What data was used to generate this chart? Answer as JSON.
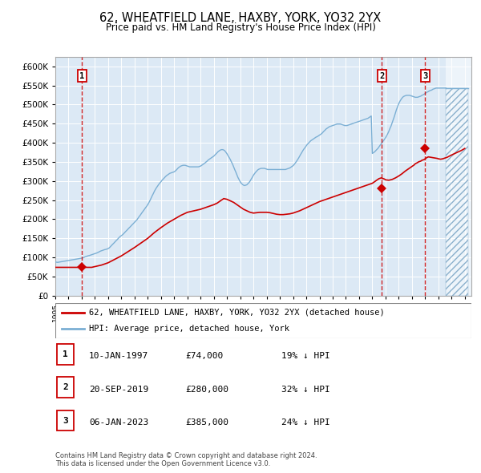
{
  "title": "62, WHEATFIELD LANE, HAXBY, YORK, YO32 2YX",
  "subtitle": "Price paid vs. HM Land Registry's House Price Index (HPI)",
  "background_color": "#dce9f5",
  "plot_bg_color": "#dce9f5",
  "fig_bg_color": "#ffffff",
  "hpi_color": "#7bafd4",
  "price_color": "#cc0000",
  "ylim": [
    0,
    625000
  ],
  "yticks": [
    0,
    50000,
    100000,
    150000,
    200000,
    250000,
    300000,
    350000,
    400000,
    450000,
    500000,
    550000,
    600000
  ],
  "xlim_start": 1995.0,
  "xlim_end": 2026.5,
  "sale_dates": [
    1997.03,
    2019.72,
    2023.01
  ],
  "sale_prices": [
    74000,
    280000,
    385000
  ],
  "sale_labels": [
    "1",
    "2",
    "3"
  ],
  "sale_info": [
    {
      "label": "1",
      "date": "10-JAN-1997",
      "price": "£74,000",
      "pct": "19% ↓ HPI"
    },
    {
      "label": "2",
      "date": "20-SEP-2019",
      "price": "£280,000",
      "pct": "32% ↓ HPI"
    },
    {
      "label": "3",
      "date": "06-JAN-2023",
      "price": "£385,000",
      "pct": "24% ↓ HPI"
    }
  ],
  "legend_line1": "62, WHEATFIELD LANE, HAXBY, YORK, YO32 2YX (detached house)",
  "legend_line2": "HPI: Average price, detached house, York",
  "footnote": "Contains HM Land Registry data © Crown copyright and database right 2024.\nThis data is licensed under the Open Government Licence v3.0.",
  "future_start": 2024.58,
  "hpi_data": {
    "years": [
      1995.0,
      1995.08,
      1995.17,
      1995.25,
      1995.33,
      1995.42,
      1995.5,
      1995.58,
      1995.67,
      1995.75,
      1995.83,
      1995.92,
      1996.0,
      1996.08,
      1996.17,
      1996.25,
      1996.33,
      1996.42,
      1996.5,
      1996.58,
      1996.67,
      1996.75,
      1996.83,
      1996.92,
      1997.0,
      1997.08,
      1997.17,
      1997.25,
      1997.33,
      1997.42,
      1997.5,
      1997.58,
      1997.67,
      1997.75,
      1997.83,
      1997.92,
      1998.0,
      1998.08,
      1998.17,
      1998.25,
      1998.33,
      1998.42,
      1998.5,
      1998.58,
      1998.67,
      1998.75,
      1998.83,
      1998.92,
      1999.0,
      1999.08,
      1999.17,
      1999.25,
      1999.33,
      1999.42,
      1999.5,
      1999.58,
      1999.67,
      1999.75,
      1999.83,
      1999.92,
      2000.0,
      2000.08,
      2000.17,
      2000.25,
      2000.33,
      2000.42,
      2000.5,
      2000.58,
      2000.67,
      2000.75,
      2000.83,
      2000.92,
      2001.0,
      2001.08,
      2001.17,
      2001.25,
      2001.33,
      2001.42,
      2001.5,
      2001.58,
      2001.67,
      2001.75,
      2001.83,
      2001.92,
      2002.0,
      2002.08,
      2002.17,
      2002.25,
      2002.33,
      2002.42,
      2002.5,
      2002.58,
      2002.67,
      2002.75,
      2002.83,
      2002.92,
      2003.0,
      2003.08,
      2003.17,
      2003.25,
      2003.33,
      2003.42,
      2003.5,
      2003.58,
      2003.67,
      2003.75,
      2003.83,
      2003.92,
      2004.0,
      2004.08,
      2004.17,
      2004.25,
      2004.33,
      2004.42,
      2004.5,
      2004.58,
      2004.67,
      2004.75,
      2004.83,
      2004.92,
      2005.0,
      2005.08,
      2005.17,
      2005.25,
      2005.33,
      2005.42,
      2005.5,
      2005.58,
      2005.67,
      2005.75,
      2005.83,
      2005.92,
      2006.0,
      2006.08,
      2006.17,
      2006.25,
      2006.33,
      2006.42,
      2006.5,
      2006.58,
      2006.67,
      2006.75,
      2006.83,
      2006.92,
      2007.0,
      2007.08,
      2007.17,
      2007.25,
      2007.33,
      2007.42,
      2007.5,
      2007.58,
      2007.67,
      2007.75,
      2007.83,
      2007.92,
      2008.0,
      2008.08,
      2008.17,
      2008.25,
      2008.33,
      2008.42,
      2008.5,
      2008.58,
      2008.67,
      2008.75,
      2008.83,
      2008.92,
      2009.0,
      2009.08,
      2009.17,
      2009.25,
      2009.33,
      2009.42,
      2009.5,
      2009.58,
      2009.67,
      2009.75,
      2009.83,
      2009.92,
      2010.0,
      2010.08,
      2010.17,
      2010.25,
      2010.33,
      2010.42,
      2010.5,
      2010.58,
      2010.67,
      2010.75,
      2010.83,
      2010.92,
      2011.0,
      2011.08,
      2011.17,
      2011.25,
      2011.33,
      2011.42,
      2011.5,
      2011.58,
      2011.67,
      2011.75,
      2011.83,
      2011.92,
      2012.0,
      2012.08,
      2012.17,
      2012.25,
      2012.33,
      2012.42,
      2012.5,
      2012.58,
      2012.67,
      2012.75,
      2012.83,
      2012.92,
      2013.0,
      2013.08,
      2013.17,
      2013.25,
      2013.33,
      2013.42,
      2013.5,
      2013.58,
      2013.67,
      2013.75,
      2013.83,
      2013.92,
      2014.0,
      2014.08,
      2014.17,
      2014.25,
      2014.33,
      2014.42,
      2014.5,
      2014.58,
      2014.67,
      2014.75,
      2014.83,
      2014.92,
      2015.0,
      2015.08,
      2015.17,
      2015.25,
      2015.33,
      2015.42,
      2015.5,
      2015.58,
      2015.67,
      2015.75,
      2015.83,
      2015.92,
      2016.0,
      2016.08,
      2016.17,
      2016.25,
      2016.33,
      2016.42,
      2016.5,
      2016.58,
      2016.67,
      2016.75,
      2016.83,
      2016.92,
      2017.0,
      2017.08,
      2017.17,
      2017.25,
      2017.33,
      2017.42,
      2017.5,
      2017.58,
      2017.67,
      2017.75,
      2017.83,
      2017.92,
      2018.0,
      2018.08,
      2018.17,
      2018.25,
      2018.33,
      2018.42,
      2018.5,
      2018.58,
      2018.67,
      2018.75,
      2018.83,
      2018.92,
      2019.0,
      2019.08,
      2019.17,
      2019.25,
      2019.33,
      2019.42,
      2019.5,
      2019.58,
      2019.67,
      2019.75,
      2019.83,
      2019.92,
      2020.0,
      2020.08,
      2020.17,
      2020.25,
      2020.33,
      2020.42,
      2020.5,
      2020.58,
      2020.67,
      2020.75,
      2020.83,
      2020.92,
      2021.0,
      2021.08,
      2021.17,
      2021.25,
      2021.33,
      2021.42,
      2021.5,
      2021.58,
      2021.67,
      2021.75,
      2021.83,
      2021.92,
      2022.0,
      2022.08,
      2022.17,
      2022.25,
      2022.33,
      2022.42,
      2022.5,
      2022.58,
      2022.67,
      2022.75,
      2022.83,
      2022.92,
      2023.0,
      2023.08,
      2023.17,
      2023.25,
      2023.33,
      2023.42,
      2023.5,
      2023.58,
      2023.67,
      2023.75,
      2023.83,
      2023.92,
      2024.0,
      2024.08,
      2024.17,
      2024.25,
      2024.33,
      2024.42,
      2024.5,
      2024.58,
      2024.67,
      2024.75,
      2024.83,
      2024.92,
      2025.0,
      2025.08,
      2025.17,
      2025.25,
      2025.5,
      2025.75,
      2026.0,
      2026.25
    ],
    "values": [
      88000,
      87500,
      87000,
      87500,
      88000,
      88500,
      89000,
      89500,
      90000,
      90500,
      91000,
      91500,
      92000,
      92500,
      93000,
      93500,
      94000,
      94500,
      95000,
      95500,
      96000,
      96500,
      97000,
      97500,
      98000,
      99000,
      100000,
      101500,
      102500,
      103500,
      104500,
      105000,
      106000,
      107000,
      108000,
      109000,
      110000,
      111000,
      112000,
      113500,
      115000,
      116500,
      117500,
      118500,
      119500,
      120500,
      121000,
      122000,
      123000,
      125000,
      128000,
      131000,
      134000,
      137000,
      140000,
      143000,
      146000,
      149000,
      152000,
      155000,
      157000,
      159000,
      162000,
      165000,
      168000,
      171000,
      174000,
      177000,
      180000,
      183000,
      186000,
      189000,
      192000,
      195000,
      198000,
      202000,
      206000,
      210000,
      214000,
      218000,
      222000,
      226000,
      230000,
      234000,
      238000,
      243000,
      249000,
      255000,
      261000,
      267000,
      273000,
      278000,
      283000,
      287000,
      291000,
      295000,
      298000,
      302000,
      305000,
      308000,
      311000,
      314000,
      316000,
      318000,
      320000,
      321000,
      322000,
      323000,
      324000,
      326000,
      329000,
      332000,
      335000,
      337000,
      339000,
      340000,
      341000,
      341000,
      341000,
      340000,
      339000,
      338000,
      337000,
      337000,
      337000,
      337000,
      337000,
      337000,
      337000,
      337000,
      337000,
      338000,
      339000,
      341000,
      343000,
      345000,
      347000,
      350000,
      352000,
      355000,
      357000,
      359000,
      361000,
      363000,
      365000,
      368000,
      371000,
      374000,
      377000,
      379000,
      381000,
      382000,
      382000,
      381000,
      379000,
      375000,
      371000,
      366000,
      361000,
      356000,
      350000,
      344000,
      337000,
      330000,
      323000,
      316000,
      309000,
      303000,
      298000,
      294000,
      291000,
      289000,
      288000,
      289000,
      290000,
      293000,
      296000,
      300000,
      305000,
      310000,
      315000,
      319000,
      323000,
      326000,
      329000,
      331000,
      332000,
      333000,
      333000,
      333000,
      333000,
      332000,
      331000,
      330000,
      330000,
      330000,
      330000,
      330000,
      330000,
      330000,
      330000,
      330000,
      330000,
      330000,
      330000,
      330000,
      330000,
      330000,
      330000,
      330000,
      331000,
      332000,
      333000,
      334000,
      336000,
      338000,
      340000,
      343000,
      347000,
      351000,
      355000,
      360000,
      365000,
      370000,
      375000,
      380000,
      384000,
      388000,
      392000,
      396000,
      399000,
      402000,
      405000,
      407000,
      409000,
      411000,
      413000,
      415000,
      416000,
      418000,
      420000,
      422000,
      424000,
      427000,
      430000,
      433000,
      436000,
      438000,
      440000,
      442000,
      443000,
      444000,
      445000,
      446000,
      447000,
      448000,
      449000,
      449000,
      449000,
      449000,
      448000,
      447000,
      446000,
      445000,
      445000,
      445000,
      446000,
      447000,
      448000,
      449000,
      450000,
      451000,
      452000,
      453000,
      454000,
      455000,
      456000,
      457000,
      458000,
      459000,
      460000,
      461000,
      462000,
      463000,
      464000,
      466000,
      468000,
      470000,
      372000,
      374000,
      376000,
      379000,
      382000,
      385000,
      389000,
      393000,
      397000,
      401000,
      405000,
      409000,
      413000,
      418000,
      424000,
      430000,
      437000,
      444000,
      452000,
      460000,
      469000,
      478000,
      487000,
      495000,
      502000,
      508000,
      513000,
      517000,
      520000,
      522000,
      523000,
      524000,
      524000,
      524000,
      524000,
      523000,
      522000,
      521000,
      520000,
      519000,
      519000,
      519000,
      520000,
      521000,
      522000,
      524000,
      525000,
      527000,
      529000,
      531000,
      533000,
      534000,
      536000,
      537000,
      538000,
      540000,
      541000,
      542000,
      543000,
      543000,
      543000,
      543000,
      543000,
      543000,
      543000,
      543000,
      543000,
      543000,
      543000,
      543000,
      543000,
      543000,
      543000,
      543000,
      543000,
      543000,
      543000,
      543000,
      543000,
      543000,
      543000,
      543000,
      543000,
      543000,
      543000,
      543000,
      543000,
      543000,
      543000,
      543000,
      543000,
      543000
    ]
  },
  "price_line_data": {
    "years": [
      1995.0,
      1995.5,
      1996.0,
      1996.5,
      1997.0,
      1997.08,
      1997.17,
      1997.25,
      1997.5,
      1997.75,
      1998.0,
      1998.5,
      1999.0,
      1999.5,
      2000.0,
      2000.5,
      2001.0,
      2001.5,
      2002.0,
      2002.5,
      2003.0,
      2003.5,
      2004.0,
      2004.5,
      2005.0,
      2005.5,
      2006.0,
      2006.5,
      2007.0,
      2007.25,
      2007.5,
      2007.58,
      2007.67,
      2007.75,
      2008.0,
      2008.25,
      2008.5,
      2008.75,
      2009.0,
      2009.25,
      2009.5,
      2009.75,
      2010.0,
      2010.5,
      2011.0,
      2011.25,
      2011.5,
      2011.75,
      2012.0,
      2012.25,
      2012.5,
      2012.75,
      2013.0,
      2013.5,
      2014.0,
      2014.5,
      2015.0,
      2015.5,
      2016.0,
      2016.5,
      2017.0,
      2017.5,
      2018.0,
      2018.5,
      2019.0,
      2019.17,
      2019.33,
      2019.5,
      2019.67,
      2019.72,
      2019.75,
      2019.92,
      2020.0,
      2020.25,
      2020.5,
      2020.75,
      2021.0,
      2021.25,
      2021.5,
      2021.75,
      2022.0,
      2022.17,
      2022.25,
      2022.42,
      2022.5,
      2022.67,
      2022.75,
      2022.92,
      2023.0,
      2023.08,
      2023.17,
      2023.25,
      2023.42,
      2023.58,
      2023.75,
      2023.92,
      2024.0,
      2024.17,
      2024.33,
      2024.5,
      2024.67,
      2024.83,
      2025.0,
      2025.25,
      2025.5,
      2025.75,
      2026.0
    ],
    "values": [
      74000,
      74000,
      74000,
      74000,
      74000,
      74000,
      74000,
      74000,
      74000,
      74000,
      76000,
      80000,
      86000,
      95000,
      104000,
      115000,
      126000,
      138000,
      150000,
      165000,
      178000,
      190000,
      200000,
      210000,
      218000,
      222000,
      226000,
      232000,
      238000,
      242000,
      248000,
      250000,
      252000,
      254000,
      252000,
      248000,
      244000,
      238000,
      232000,
      226000,
      222000,
      218000,
      216000,
      218000,
      218000,
      217000,
      215000,
      213000,
      212000,
      212000,
      213000,
      214000,
      216000,
      222000,
      230000,
      238000,
      246000,
      252000,
      258000,
      264000,
      270000,
      276000,
      282000,
      288000,
      294000,
      298000,
      302000,
      306000,
      308000,
      308000,
      307000,
      305000,
      303000,
      302000,
      304000,
      308000,
      313000,
      319000,
      326000,
      332000,
      338000,
      342000,
      345000,
      348000,
      350000,
      352000,
      354000,
      356000,
      358000,
      360000,
      362000,
      363000,
      362000,
      361000,
      360000,
      359000,
      358000,
      357000,
      358000,
      360000,
      362000,
      365000,
      368000,
      372000,
      376000,
      380000,
      385000
    ]
  }
}
